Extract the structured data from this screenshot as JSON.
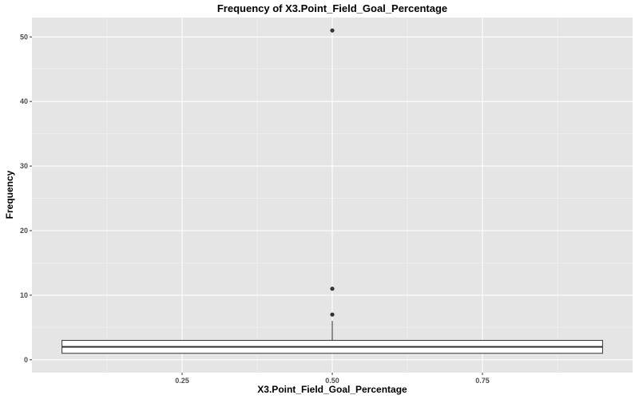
{
  "chart_data": {
    "type": "boxplot",
    "title": "Frequency of X3.Point_Field_Goal_Percentage",
    "xlabel": "X3.Point_Field_Goal_Percentage",
    "ylabel": "Frequency",
    "xlim": [
      0,
      1
    ],
    "ylim": [
      -2,
      53
    ],
    "x_ticks": [
      0.25,
      0.5,
      0.75
    ],
    "x_tick_labels": [
      "0.25",
      "0.50",
      "0.75"
    ],
    "y_ticks": [
      0,
      10,
      20,
      30,
      40,
      50
    ],
    "y_tick_labels": [
      "0",
      "10",
      "20",
      "30",
      "40",
      "50"
    ],
    "grid": true,
    "background": "#e5e5e5",
    "box": {
      "x": 0.5,
      "x_extent": [
        0.05,
        0.95
      ],
      "lower_whisker": 1,
      "q1": 1,
      "median": 2,
      "q3": 3,
      "upper_whisker": 6,
      "outliers": [
        7,
        11,
        51
      ]
    }
  }
}
